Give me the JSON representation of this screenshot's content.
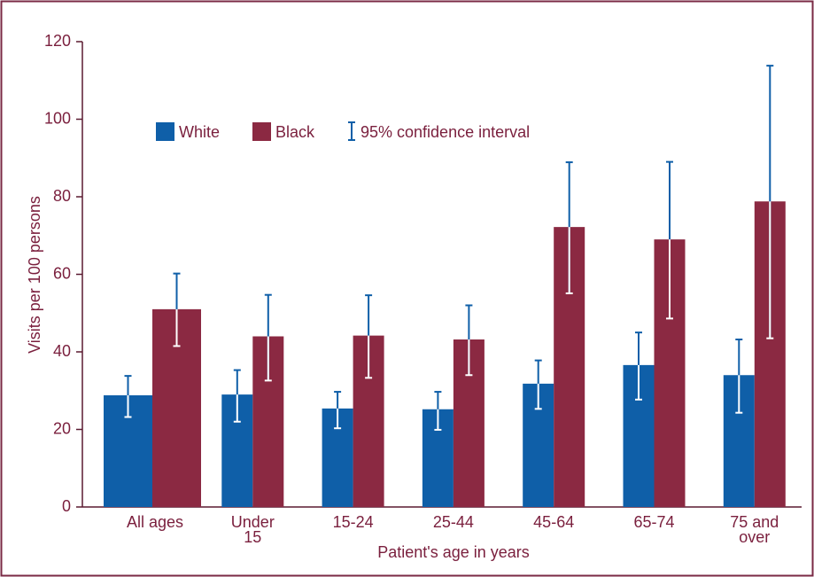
{
  "chart_data": {
    "type": "bar",
    "x_label": "Patient's age in years",
    "y_label": "Visits per 100 persons",
    "categories": [
      [
        "All ages"
      ],
      [
        "Under",
        "15"
      ],
      [
        "15-24"
      ],
      [
        "25-44"
      ],
      [
        "45-64"
      ],
      [
        "65-74"
      ],
      [
        "75 and",
        "over"
      ]
    ],
    "series": [
      {
        "name": "White",
        "color": "#0f5fa8",
        "values": [
          28.8,
          29,
          25.4,
          25.2,
          31.8,
          36.6,
          34
        ],
        "ci_low": [
          23.2,
          22,
          20.3,
          19.9,
          25.3,
          27.7,
          24.3
        ],
        "ci_high": [
          33.8,
          35.3,
          29.7,
          29.7,
          37.8,
          45,
          43.2
        ]
      },
      {
        "name": "Black",
        "color": "#8b2942",
        "values": [
          51,
          44,
          44.2,
          43.2,
          72.2,
          69,
          78.8
        ],
        "ci_low": [
          41.5,
          32.6,
          33.3,
          34,
          55.1,
          48.6,
          43.5
        ],
        "ci_high": [
          60.2,
          54.7,
          54.6,
          52,
          88.9,
          89,
          113.8
        ]
      }
    ],
    "ci_legend": "95% confidence interval",
    "ci_color": "#0f5fa8",
    "ylim": [
      0,
      120
    ],
    "yticks": [
      0,
      20,
      40,
      60,
      80,
      100,
      120
    ]
  }
}
